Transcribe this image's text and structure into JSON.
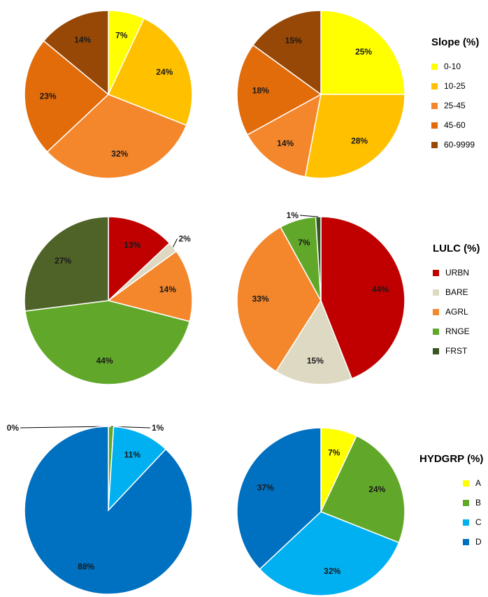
{
  "chart_data": [
    {
      "type": "pie",
      "group": "slope",
      "panel": "left",
      "categories": [
        "0-10",
        "10-25",
        "25-45",
        "45-60",
        "60-9999"
      ],
      "values": [
        7,
        24,
        32,
        23,
        14
      ],
      "labels": [
        "7%",
        "24%",
        "32%",
        "23%",
        "14%"
      ],
      "colors": [
        "#FFFF00",
        "#FFC000",
        "#F4862B",
        "#E26B0A",
        "#974806"
      ]
    },
    {
      "type": "pie",
      "group": "slope",
      "panel": "right",
      "categories": [
        "0-10",
        "10-25",
        "25-45",
        "45-60",
        "60-9999"
      ],
      "values": [
        25,
        28,
        14,
        18,
        15
      ],
      "labels": [
        "25%",
        "28%",
        "14%",
        "18%",
        "15%"
      ],
      "colors": [
        "#FFFF00",
        "#FFC000",
        "#F4862B",
        "#E26B0A",
        "#974806"
      ]
    },
    {
      "type": "pie",
      "group": "lulc",
      "panel": "left",
      "categories": [
        "URBN",
        "BARE",
        "AGRL",
        "RNGE",
        "FRST"
      ],
      "values": [
        13,
        2,
        14,
        44,
        27
      ],
      "labels": [
        "13%",
        "2%",
        "14%",
        "44%",
        "27%"
      ],
      "colors": [
        "#C00000",
        "#DDD9C3",
        "#F4862B",
        "#61A82A",
        "#4F6228"
      ]
    },
    {
      "type": "pie",
      "group": "lulc",
      "panel": "right",
      "categories": [
        "URBN",
        "BARE",
        "AGRL",
        "RNGE",
        "FRST"
      ],
      "values": [
        44,
        15,
        33,
        7,
        1
      ],
      "labels": [
        "44%",
        "15%",
        "33%",
        "7%",
        "1%"
      ],
      "colors": [
        "#C00000",
        "#DDD9C3",
        "#F4862B",
        "#61A82A",
        "#375623"
      ]
    },
    {
      "type": "pie",
      "group": "hydgrp",
      "panel": "left",
      "categories": [
        "A",
        "B",
        "C",
        "D"
      ],
      "values": [
        0,
        1,
        11,
        88
      ],
      "labels": [
        "0%",
        "1%",
        "11%",
        "88%"
      ],
      "colors": [
        "#FFFF00",
        "#61A82A",
        "#00B0F0",
        "#0070C0"
      ]
    },
    {
      "type": "pie",
      "group": "hydgrp",
      "panel": "right",
      "categories": [
        "A",
        "B",
        "C",
        "D"
      ],
      "values": [
        7,
        24,
        32,
        37
      ],
      "labels": [
        "7%",
        "24%",
        "32%",
        "37%"
      ],
      "colors": [
        "#FFFF00",
        "#61A82A",
        "#00B0F0",
        "#0070C0"
      ]
    }
  ],
  "legends": [
    {
      "title": "Slope (%)",
      "items": [
        {
          "label": "0-10",
          "color": "#FFFF00"
        },
        {
          "label": "10-25",
          "color": "#FFC000"
        },
        {
          "label": "25-45",
          "color": "#F4862B"
        },
        {
          "label": "45-60",
          "color": "#E26B0A"
        },
        {
          "label": "60-9999",
          "color": "#974806"
        }
      ]
    },
    {
      "title": "LULC (%)",
      "items": [
        {
          "label": "URBN",
          "color": "#C00000"
        },
        {
          "label": "BARE",
          "color": "#DDD9C3"
        },
        {
          "label": "AGRL",
          "color": "#F4862B"
        },
        {
          "label": "RNGE",
          "color": "#61A82A"
        },
        {
          "label": "FRST",
          "color": "#375623"
        }
      ]
    },
    {
      "title": "HYDGRP (%)",
      "items": [
        {
          "label": "A",
          "color": "#FFFF00"
        },
        {
          "label": "B",
          "color": "#61A82A"
        },
        {
          "label": "C",
          "color": "#00B0F0"
        },
        {
          "label": "D",
          "color": "#0070C0"
        }
      ]
    }
  ]
}
